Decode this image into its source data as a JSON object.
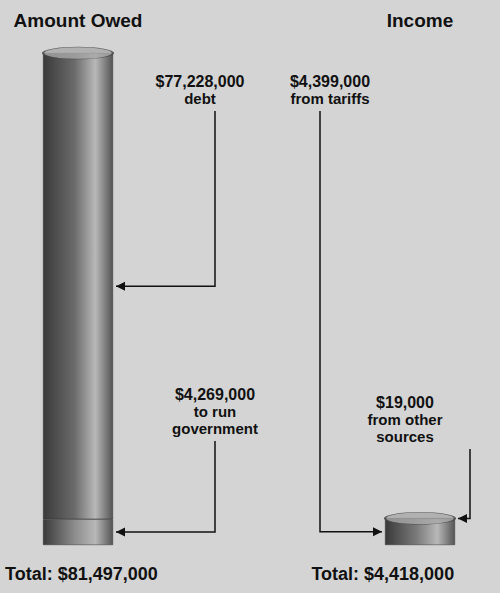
{
  "chart_data": {
    "type": "bar",
    "stacked": true,
    "categories": [
      "Amount Owed",
      "Income"
    ],
    "series": [
      {
        "name": "to run government",
        "color": "#8c8c8c",
        "values": [
          4269000,
          null
        ],
        "value_labels": [
          "$4,269,000",
          null
        ]
      },
      {
        "name": "debt",
        "color": "#6b6b6b",
        "values": [
          77228000,
          null
        ],
        "value_labels": [
          "$77,228,000",
          null
        ]
      },
      {
        "name": "from tariffs",
        "color": "#7a7a7a",
        "values": [
          null,
          4399000
        ],
        "value_labels": [
          null,
          "$4,399,000"
        ]
      },
      {
        "name": "from other sources",
        "color": "#8c8c8c",
        "values": [
          null,
          19000
        ],
        "value_labels": [
          null,
          "$19,000"
        ]
      }
    ],
    "totals": [
      81497000,
      4418000
    ],
    "total_labels": [
      "Total: $81,497,000",
      "Total: $4,418,000"
    ],
    "ylim": [
      0,
      82000000
    ],
    "tick_labels": "x",
    "grid": false,
    "data_labels": true
  }
}
